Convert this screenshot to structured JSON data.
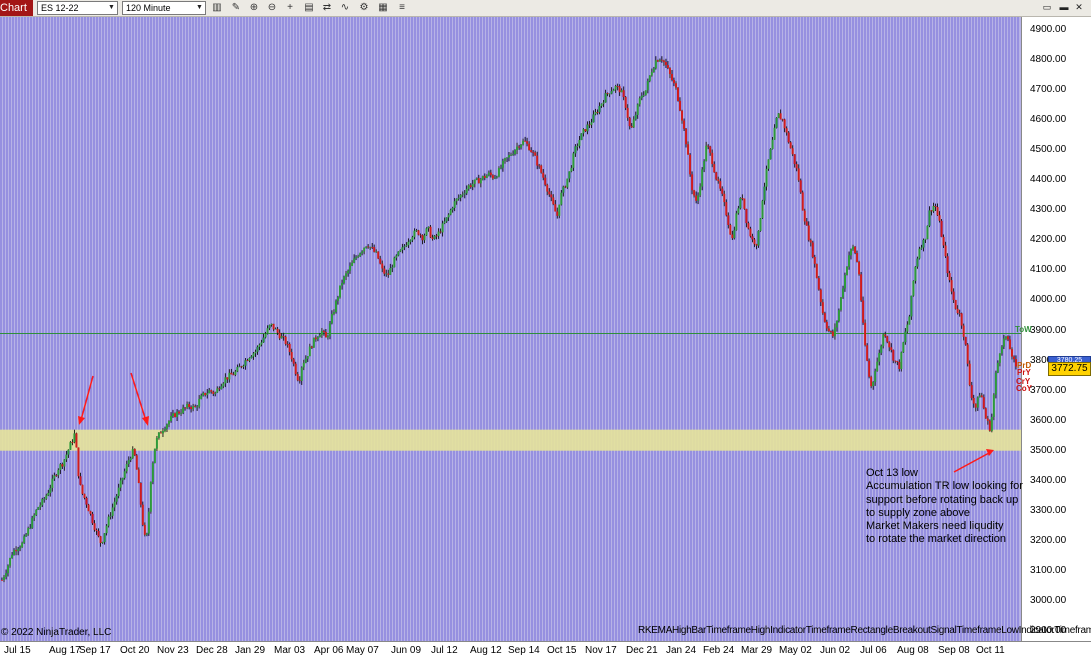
{
  "toolbar": {
    "tab_label": "Chart",
    "instrument": "ES 12-22",
    "interval": "120 Minute",
    "icons": [
      "bar-type-icon",
      "drawing-tools-icon",
      "zoom-in-icon",
      "zoom-out-icon",
      "crosshair-icon",
      "data-box-icon",
      "chart-trader-icon",
      "indicators-icon",
      "strategies-icon",
      "properties-icon",
      "menu-icon"
    ],
    "window_buttons": [
      "minimize-icon",
      "maximize-icon",
      "close-icon"
    ]
  },
  "colors": {
    "background": "#b7b3e6",
    "session_lines": "#5e55d6",
    "zone": "#e6e39a",
    "price_line": "#2f8f3a",
    "arrow": "#ff1a1a"
  },
  "chart_data": {
    "type": "candlestick",
    "instrument": "ES 12-22",
    "interval": "120 Minute",
    "ylim": [
      2900,
      4900
    ],
    "y_ticks": [
      2900,
      3000,
      3100,
      3200,
      3300,
      3400,
      3500,
      3600,
      3700,
      3800,
      3900,
      4000,
      4100,
      4200,
      4300,
      4400,
      4500,
      4600,
      4700,
      4800,
      4900
    ],
    "x_ticks": [
      "Jul 15",
      "Aug 17",
      "Sep 17",
      "Oct 20",
      "Nov 23",
      "Dec 28",
      "Jan 29",
      "Mar 03",
      "Apr 06",
      "May 07",
      "Jun 09",
      "Jul 12",
      "Aug 12",
      "Sep 14",
      "Oct 15",
      "Nov 17",
      "Dec 21",
      "Jan 24",
      "Feb 24",
      "Mar 29",
      "May 02",
      "Jun 02",
      "Jul 06",
      "Aug 08",
      "Sep 08",
      "Oct 11"
    ],
    "close_path": [
      [
        0,
        3070
      ],
      [
        0.5,
        3110
      ],
      [
        1,
        3160
      ],
      [
        1.5,
        3180
      ],
      [
        2,
        3190
      ],
      [
        2.5,
        3230
      ],
      [
        3,
        3270
      ],
      [
        3.5,
        3310
      ],
      [
        4,
        3330
      ],
      [
        4.5,
        3360
      ],
      [
        5,
        3400
      ],
      [
        5.5,
        3440
      ],
      [
        6,
        3460
      ],
      [
        6.5,
        3500
      ],
      [
        7,
        3540
      ],
      [
        7.2,
        3560
      ],
      [
        7.4,
        3480
      ],
      [
        7.6,
        3400
      ],
      [
        7.8,
        3370
      ],
      [
        8,
        3350
      ],
      [
        8.2,
        3340
      ],
      [
        8.6,
        3300
      ],
      [
        9,
        3260
      ],
      [
        9.4,
        3220
      ],
      [
        9.8,
        3190
      ],
      [
        10.2,
        3240
      ],
      [
        10.6,
        3280
      ],
      [
        11,
        3320
      ],
      [
        11.4,
        3360
      ],
      [
        11.8,
        3400
      ],
      [
        12.2,
        3440
      ],
      [
        12.6,
        3480
      ],
      [
        13,
        3500
      ],
      [
        13.2,
        3460
      ],
      [
        13.4,
        3410
      ],
      [
        13.6,
        3350
      ],
      [
        13.8,
        3290
      ],
      [
        14,
        3220
      ],
      [
        14.2,
        3200
      ],
      [
        14.4,
        3240
      ],
      [
        14.6,
        3380
      ],
      [
        14.8,
        3440
      ],
      [
        15,
        3500
      ],
      [
        15.3,
        3540
      ],
      [
        15.6,
        3560
      ],
      [
        16,
        3580
      ],
      [
        16.5,
        3600
      ],
      [
        17,
        3620
      ],
      [
        17.5,
        3630
      ],
      [
        18,
        3640
      ],
      [
        18.5,
        3650
      ],
      [
        19,
        3640
      ],
      [
        19.5,
        3670
      ],
      [
        20,
        3690
      ],
      [
        20.5,
        3700
      ],
      [
        21,
        3690
      ],
      [
        21.5,
        3720
      ],
      [
        22,
        3740
      ],
      [
        22.5,
        3750
      ],
      [
        23,
        3760
      ],
      [
        23.5,
        3780
      ],
      [
        24,
        3800
      ],
      [
        24.5,
        3820
      ],
      [
        25,
        3830
      ],
      [
        25.5,
        3860
      ],
      [
        26,
        3890
      ],
      [
        26.5,
        3920
      ],
      [
        27,
        3900
      ],
      [
        27.5,
        3880
      ],
      [
        28,
        3860
      ],
      [
        28.5,
        3820
      ],
      [
        29,
        3760
      ],
      [
        29.3,
        3730
      ],
      [
        29.6,
        3790
      ],
      [
        30,
        3810
      ],
      [
        30.5,
        3850
      ],
      [
        31,
        3880
      ],
      [
        31.5,
        3900
      ],
      [
        32,
        3870
      ],
      [
        32.5,
        3940
      ],
      [
        33,
        4000
      ],
      [
        33.5,
        4060
      ],
      [
        34,
        4090
      ],
      [
        34.5,
        4120
      ],
      [
        35,
        4150
      ],
      [
        35.5,
        4170
      ],
      [
        36,
        4190
      ],
      [
        36.5,
        4170
      ],
      [
        37,
        4150
      ],
      [
        37.5,
        4100
      ],
      [
        38,
        4080
      ],
      [
        38.5,
        4120
      ],
      [
        39,
        4150
      ],
      [
        39.5,
        4170
      ],
      [
        40,
        4200
      ],
      [
        40.5,
        4220
      ],
      [
        41,
        4230
      ],
      [
        41.5,
        4210
      ],
      [
        42,
        4240
      ],
      [
        42.5,
        4200
      ],
      [
        43,
        4220
      ],
      [
        43.5,
        4250
      ],
      [
        44,
        4280
      ],
      [
        44.5,
        4320
      ],
      [
        45,
        4340
      ],
      [
        45.5,
        4360
      ],
      [
        46,
        4380
      ],
      [
        46.5,
        4390
      ],
      [
        47,
        4400
      ],
      [
        47.5,
        4410
      ],
      [
        48,
        4420
      ],
      [
        48.5,
        4410
      ],
      [
        49,
        4430
      ],
      [
        49.5,
        4460
      ],
      [
        50,
        4480
      ],
      [
        50.5,
        4500
      ],
      [
        51,
        4520
      ],
      [
        51.5,
        4530
      ],
      [
        52,
        4510
      ],
      [
        52.5,
        4480
      ],
      [
        53,
        4440
      ],
      [
        53.5,
        4400
      ],
      [
        54,
        4350
      ],
      [
        54.5,
        4300
      ],
      [
        54.8,
        4280
      ],
      [
        55,
        4340
      ],
      [
        55.5,
        4380
      ],
      [
        56,
        4430
      ],
      [
        56.5,
        4500
      ],
      [
        57,
        4540
      ],
      [
        57.5,
        4570
      ],
      [
        58,
        4590
      ],
      [
        58.5,
        4620
      ],
      [
        59,
        4650
      ],
      [
        59.5,
        4680
      ],
      [
        60,
        4700
      ],
      [
        60.5,
        4710
      ],
      [
        61,
        4700
      ],
      [
        61.5,
        4650
      ],
      [
        62,
        4560
      ],
      [
        62.5,
        4620
      ],
      [
        63,
        4680
      ],
      [
        63.5,
        4700
      ],
      [
        64,
        4760
      ],
      [
        64.5,
        4800
      ],
      [
        65,
        4810
      ],
      [
        65.5,
        4780
      ],
      [
        66,
        4740
      ],
      [
        66.5,
        4700
      ],
      [
        67,
        4620
      ],
      [
        67.5,
        4520
      ],
      [
        68,
        4380
      ],
      [
        68.5,
        4320
      ],
      [
        69,
        4420
      ],
      [
        69.5,
        4520
      ],
      [
        70,
        4470
      ],
      [
        70.5,
        4400
      ],
      [
        71,
        4350
      ],
      [
        71.5,
        4280
      ],
      [
        72,
        4200
      ],
      [
        72.5,
        4300
      ],
      [
        73,
        4350
      ],
      [
        73.5,
        4250
      ],
      [
        74,
        4200
      ],
      [
        74.5,
        4190
      ],
      [
        75,
        4340
      ],
      [
        75.5,
        4450
      ],
      [
        76,
        4530
      ],
      [
        76.5,
        4620
      ],
      [
        77,
        4600
      ],
      [
        77.5,
        4540
      ],
      [
        78,
        4480
      ],
      [
        78.5,
        4420
      ],
      [
        79,
        4300
      ],
      [
        79.5,
        4220
      ],
      [
        80,
        4150
      ],
      [
        80.5,
        4050
      ],
      [
        81,
        3950
      ],
      [
        81.5,
        3900
      ],
      [
        82,
        3880
      ],
      [
        82.5,
        3960
      ],
      [
        83,
        4060
      ],
      [
        83.5,
        4150
      ],
      [
        84,
        4180
      ],
      [
        84.5,
        4100
      ],
      [
        85,
        3880
      ],
      [
        85.5,
        3750
      ],
      [
        85.8,
        3700
      ],
      [
        86,
        3760
      ],
      [
        86.5,
        3820
      ],
      [
        87,
        3900
      ],
      [
        87.5,
        3850
      ],
      [
        88,
        3800
      ],
      [
        88.5,
        3780
      ],
      [
        89,
        3880
      ],
      [
        89.5,
        3950
      ],
      [
        90,
        4100
      ],
      [
        90.5,
        4180
      ],
      [
        91,
        4200
      ],
      [
        91.5,
        4300
      ],
      [
        92,
        4320
      ],
      [
        92.5,
        4250
      ],
      [
        93,
        4150
      ],
      [
        93.5,
        4050
      ],
      [
        94,
        3980
      ],
      [
        94.5,
        3950
      ],
      [
        95,
        3860
      ],
      [
        95.5,
        3700
      ],
      [
        96,
        3640
      ],
      [
        96.5,
        3700
      ],
      [
        97,
        3610
      ],
      [
        97.5,
        3570
      ],
      [
        98,
        3750
      ],
      [
        98.5,
        3850
      ],
      [
        99,
        3880
      ],
      [
        99.5,
        3830
      ],
      [
        100,
        3772
      ]
    ],
    "series": [
      {
        "name": "ES 12-22",
        "last": 3772.75
      }
    ],
    "reference_line": 3890,
    "zone": [
      3500,
      3570
    ],
    "labels": {
      "price_flag": "3772.75",
      "flag_behind": "3780.25",
      "level_tags": [
        "ToW",
        "PrD",
        "PrY",
        "CrY",
        "CoY"
      ]
    },
    "annotations": [
      "Oct 13 low",
      "Accumulation TR low looking for",
      "support before rotating back up",
      "to supply zone above",
      "Market Makers need liqudity",
      "to rotate the market direction"
    ]
  },
  "footer": {
    "copyright": "© 2022 NinjaTrader, LLC",
    "indicator_labels": "RKEMAHighBarTimeframeHighIndicatorTimeframeRectangleBreakoutSignalTimeframeLowIndicatorTimeframe"
  }
}
